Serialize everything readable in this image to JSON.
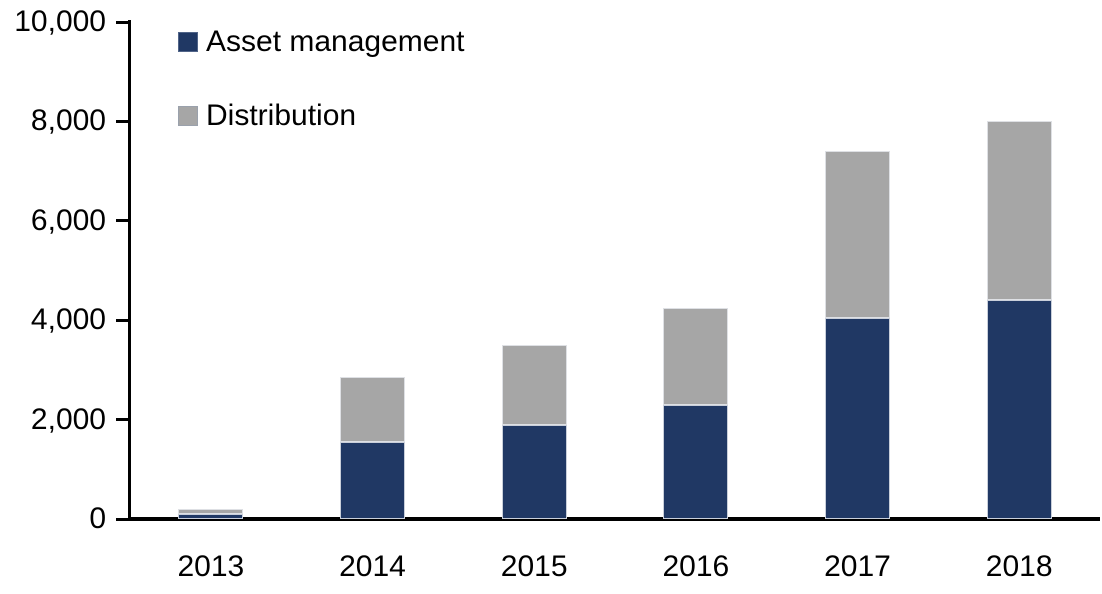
{
  "chart_data": {
    "type": "bar",
    "stacked": true,
    "title": "",
    "xlabel": "",
    "ylabel": "",
    "categories": [
      "2013",
      "2014",
      "2015",
      "2016",
      "2017",
      "2018"
    ],
    "series": [
      {
        "name": "Asset management",
        "color": "#203864",
        "values": [
          100,
          1550,
          1900,
          2300,
          4050,
          4400
        ]
      },
      {
        "name": "Distribution",
        "color": "#A6A6A6",
        "values": [
          100,
          1300,
          1600,
          1950,
          3350,
          3600
        ]
      }
    ],
    "ylim": [
      0,
      10000
    ],
    "ytick_values": [
      0,
      2000,
      4000,
      6000,
      8000,
      10000
    ],
    "ytick_labels": [
      "0",
      "2,000",
      "4,000",
      "6,000",
      "8,000",
      "10,000"
    ],
    "grid": false,
    "legend_position": "top-left",
    "axis_color": "#000000",
    "background": "#FFFFFF"
  }
}
